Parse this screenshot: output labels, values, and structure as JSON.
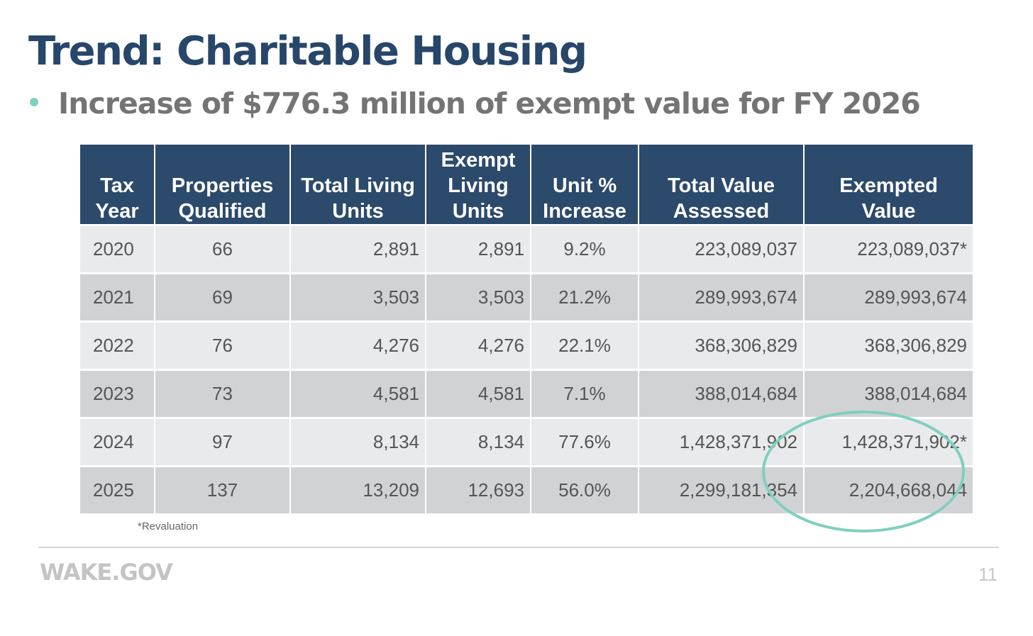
{
  "title": "Trend: Charitable Housing",
  "subtitle": "Increase of $776.3 million of exempt value for FY 2026",
  "table": {
    "headers": [
      [
        "Tax",
        "Year"
      ],
      [
        "Properties",
        "Qualified"
      ],
      [
        "Total Living",
        "Units"
      ],
      [
        "Exempt",
        "Living",
        "Units"
      ],
      [
        "Unit %",
        "Increase"
      ],
      [
        "Total Value",
        "Assessed"
      ],
      [
        "Exempted",
        "Value"
      ]
    ],
    "rows": [
      [
        "2020",
        "66",
        "2,891",
        "2,891",
        "9.2%",
        "223,089,037",
        "223,089,037*"
      ],
      [
        "2021",
        "69",
        "3,503",
        "3,503",
        "21.2%",
        "289,993,674",
        "289,993,674"
      ],
      [
        "2022",
        "76",
        "4,276",
        "4,276",
        "22.1%",
        "368,306,829",
        "368,306,829"
      ],
      [
        "2023",
        "73",
        "4,581",
        "4,581",
        "7.1%",
        "388,014,684",
        "388,014,684"
      ],
      [
        "2024",
        "97",
        "8,134",
        "8,134",
        "77.6%",
        "1,428,371,902",
        "1,428,371,902*"
      ],
      [
        "2025",
        "137",
        "13,209",
        "12,693",
        "56.0%",
        "2,299,181,354",
        "2,204,668,044"
      ]
    ]
  },
  "footnote": "*Revaluation",
  "footer": {
    "logo": "WAKE.GOV",
    "page_number": "11"
  },
  "colors": {
    "header": "#2c4a6b",
    "title": "#27466a",
    "highlight": "#7fcfc0"
  }
}
